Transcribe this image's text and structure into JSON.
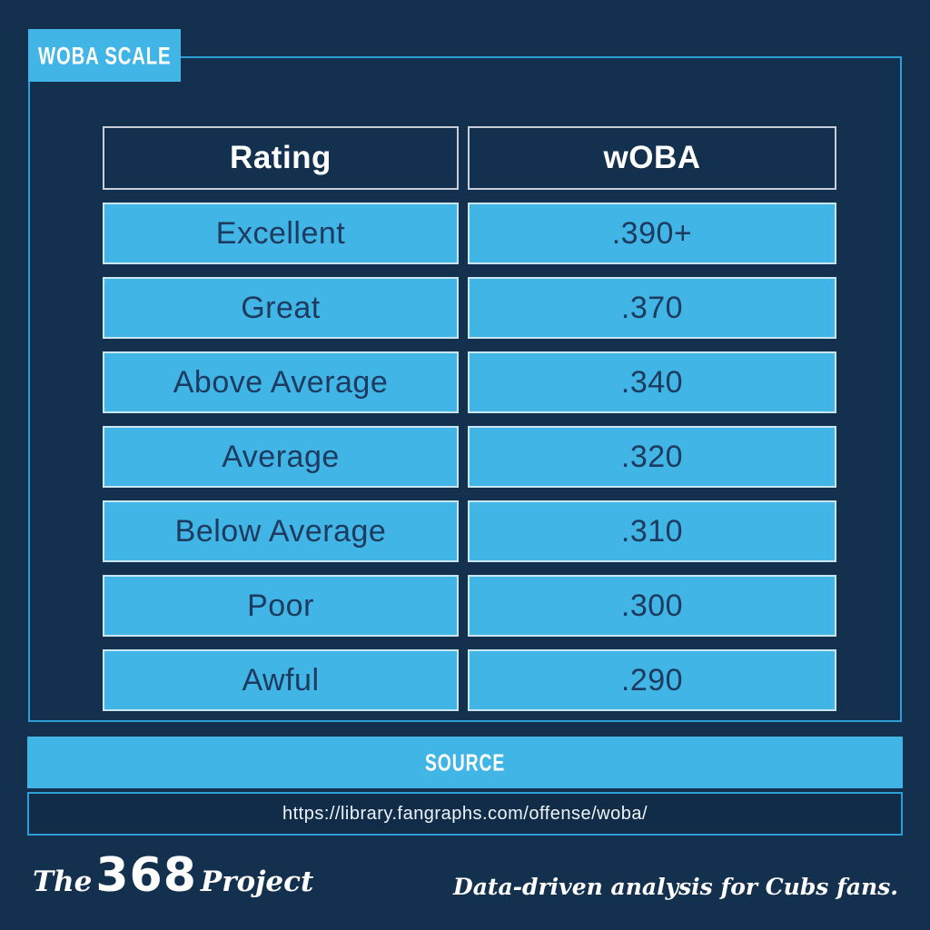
{
  "colors": {
    "background": "#13304E",
    "accent_blue": "#41B5E5",
    "frame_border": "#2E9FD4",
    "header_border": "#C8CEDA",
    "cell_border": "#CBE6F3",
    "cell_text": "#1D3A5F",
    "white": "#FFFFFF"
  },
  "badge": {
    "label": "WOBA SCALE"
  },
  "source": {
    "label": "SOURCE",
    "url": "https://library.fangraphs.com/offense/woba/"
  },
  "footer": {
    "brand_the": "The",
    "brand_368": "368",
    "brand_project": "Project",
    "tagline": "Data-driven analysis for Cubs fans."
  },
  "chart_data": {
    "type": "table",
    "title": "WOBA SCALE",
    "columns": [
      "Rating",
      "wOBA"
    ],
    "rows": [
      [
        "Excellent",
        ".390+"
      ],
      [
        "Great",
        ".370"
      ],
      [
        "Above Average",
        ".340"
      ],
      [
        "Average",
        ".320"
      ],
      [
        "Below Average",
        ".310"
      ],
      [
        "Poor",
        ".300"
      ],
      [
        "Awful",
        ".290"
      ]
    ],
    "source": "https://library.fangraphs.com/offense/woba/"
  }
}
